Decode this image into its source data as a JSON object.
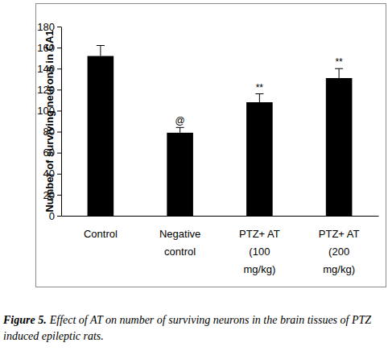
{
  "chart_data": {
    "type": "bar",
    "categories": [
      "Control",
      "Negative\ncontrol",
      "PTZ+ AT\n(100\nmg/kg)",
      "PTZ+ AT\n(200\nmg/kg)"
    ],
    "values": [
      152,
      79,
      108,
      131
    ],
    "errors": [
      10,
      5,
      8,
      9
    ],
    "annotations": [
      null,
      "@",
      "**",
      "**"
    ],
    "color": "#000000",
    "y_label": "Number of surviving neurons in CA1",
    "ylim": [
      0,
      180
    ],
    "yticks": [
      0,
      20,
      40,
      60,
      80,
      100,
      120,
      140,
      160,
      180
    ],
    "grid": false,
    "caption_label": "Figure 5.",
    "caption": "Effect of AT on number of surviving neurons in the brain tissues of PTZ induced epileptic rats."
  }
}
